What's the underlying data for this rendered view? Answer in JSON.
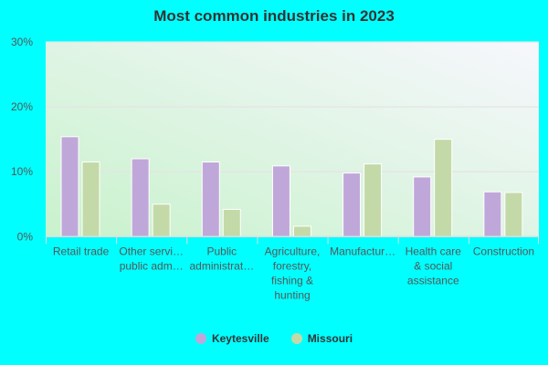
{
  "chart_data": {
    "type": "bar",
    "title": "Most common industries in 2023",
    "categories": [
      [
        "Retail trade"
      ],
      [
        "Other servi…",
        "public adm…"
      ],
      [
        "Public",
        "administrat…"
      ],
      [
        "Agriculture,",
        "forestry,",
        "fishing &",
        "hunting"
      ],
      [
        "Manufactur…"
      ],
      [
        "Health care",
        "& social",
        "assistance"
      ],
      [
        "Construction"
      ]
    ],
    "series": [
      {
        "name": "Keytesville",
        "color": "#bfa8d9",
        "values": [
          15.4,
          12.0,
          11.5,
          10.9,
          9.8,
          9.2,
          6.9
        ]
      },
      {
        "name": "Missouri",
        "color": "#c4d9a8",
        "values": [
          11.5,
          5.0,
          4.2,
          1.6,
          11.2,
          15.0,
          6.8
        ]
      }
    ],
    "ylim": [
      0,
      30
    ],
    "yticks": [
      "0%",
      "10%",
      "20%",
      "30%"
    ],
    "ytick_values": [
      0,
      10,
      20,
      30
    ],
    "grid": true,
    "legend": "bottom"
  }
}
